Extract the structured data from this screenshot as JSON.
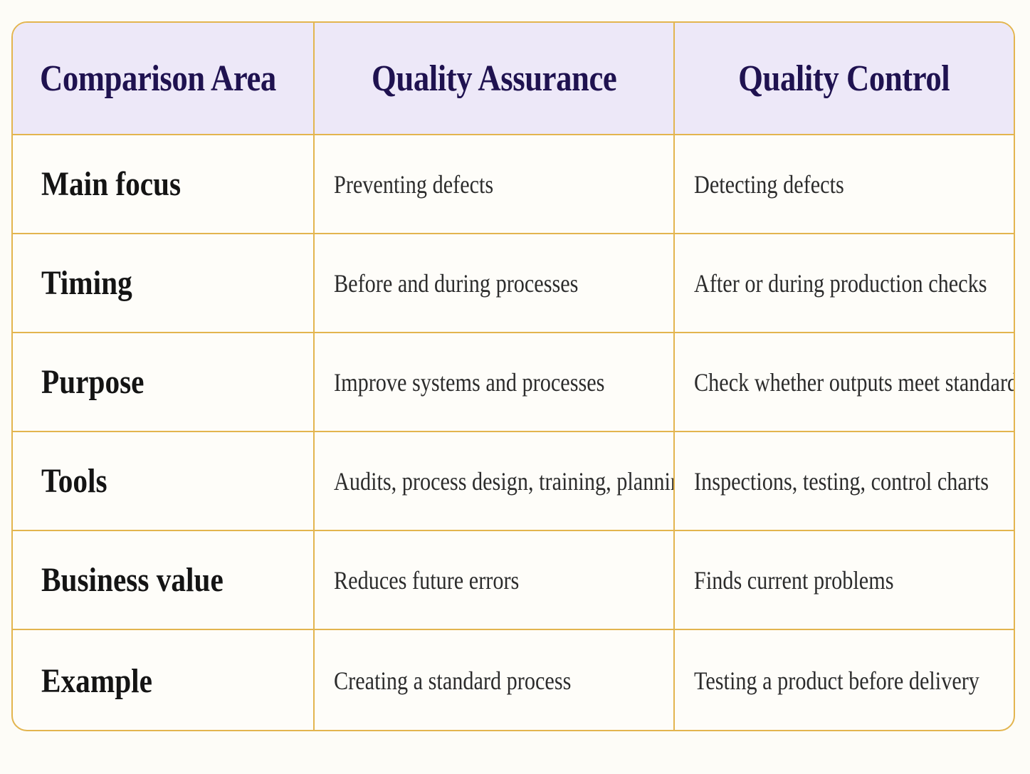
{
  "headers": [
    "Comparison Area",
    "Quality Assurance",
    "Quality Control"
  ],
  "rows": [
    {
      "area": "Main focus",
      "qa": "Preventing defects",
      "qc": "Detecting defects"
    },
    {
      "area": "Timing",
      "qa": "Before and during processes",
      "qc": "After or during production checks"
    },
    {
      "area": "Purpose",
      "qa": "Improve systems and processes",
      "qc": "Check whether outputs meet standards"
    },
    {
      "area": "Tools",
      "qa": "Audits, process design, training, planning",
      "qc": "Inspections, testing, control charts"
    },
    {
      "area": "Business value",
      "qa": "Reduces future errors",
      "qc": "Finds current problems"
    },
    {
      "area": "Example",
      "qa": "Creating a standard process",
      "qc": "Testing a product before delivery"
    }
  ],
  "colors": {
    "border": "#e3b54f",
    "header_bg": "#ede8f8",
    "header_text": "#1f1250",
    "page_bg": "#fdfcf7"
  }
}
